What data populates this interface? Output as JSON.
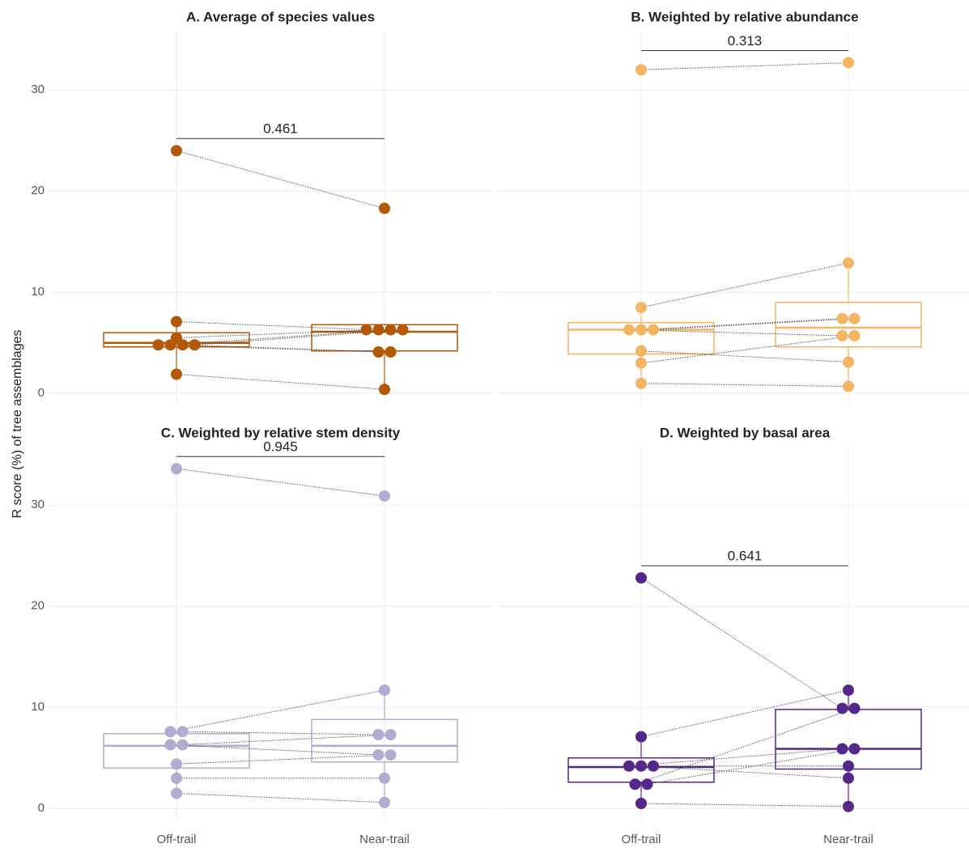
{
  "ylabel": "R score (%) of tree assemblages",
  "categories": [
    "Off-trail",
    "Near-trail"
  ],
  "ylim": [
    -1.1,
    35.7
  ],
  "yticks": [
    0,
    10,
    20,
    30
  ],
  "grid": true,
  "chart_data": [
    {
      "type": "paired-box",
      "title": "A. Average of species values",
      "color": "#b35806",
      "annotation": "0.461",
      "groups": [
        {
          "values": [
            24,
            7.1,
            5.5,
            4.8,
            4.8,
            4.8,
            4.8,
            1.9
          ],
          "q1": 4.6,
          "median": 5.0,
          "q3": 6.0,
          "whisker_low": 1.9,
          "whisker_high": 7.1
        },
        {
          "values": [
            18.3,
            6.3,
            6.3,
            4.1,
            6.3,
            4.1,
            6.3,
            0.4
          ],
          "q1": 4.2,
          "median": 6.1,
          "q3": 6.8,
          "whisker_low": 0.4,
          "whisker_high": 6.8
        }
      ]
    },
    {
      "type": "paired-box",
      "title": "B. Weighted by relative abundance",
      "color": "#f5b461",
      "annotation": "0.313",
      "groups": [
        {
          "values": [
            32,
            8.5,
            6.3,
            6.3,
            6.3,
            4.2,
            3.0,
            1.0
          ],
          "q1": 3.9,
          "median": 6.3,
          "q3": 7.0,
          "whisker_low": 1.0,
          "whisker_high": 8.5
        },
        {
          "values": [
            32.7,
            12.9,
            5.7,
            7.4,
            7.4,
            3.1,
            5.7,
            0.7
          ],
          "q1": 4.6,
          "median": 6.5,
          "q3": 9.0,
          "whisker_low": 0.7,
          "whisker_high": 12.9
        }
      ]
    },
    {
      "type": "paired-box",
      "title": "C. Weighted by relative stem density",
      "color": "#b2abd2",
      "annotation": "0.945",
      "groups": [
        {
          "values": [
            33.6,
            7.6,
            7.6,
            6.3,
            6.3,
            4.4,
            3.0,
            1.5
          ],
          "q1": 4.0,
          "median": 6.2,
          "q3": 7.4,
          "whisker_low": 1.5,
          "whisker_high": 7.6
        },
        {
          "values": [
            30.9,
            11.7,
            7.3,
            5.3,
            7.3,
            5.3,
            3.0,
            0.6
          ],
          "q1": 4.6,
          "median": 6.2,
          "q3": 8.8,
          "whisker_low": 0.6,
          "whisker_high": 11.7
        }
      ]
    },
    {
      "type": "paired-box",
      "title": "D. Weighted by basal area",
      "color": "#542788",
      "annotation": "0.641",
      "groups": [
        {
          "values": [
            22.8,
            7.1,
            4.2,
            4.2,
            4.2,
            2.4,
            2.4,
            0.5
          ],
          "q1": 2.6,
          "median": 4.1,
          "q3": 5.0,
          "whisker_low": 0.5,
          "whisker_high": 7.1
        },
        {
          "values": [
            9.9,
            11.7,
            5.9,
            3.0,
            4.2,
            9.9,
            5.9,
            0.2
          ],
          "q1": 3.9,
          "median": 5.9,
          "q3": 9.8,
          "whisker_low": 0.2,
          "whisker_high": 11.7
        }
      ]
    }
  ]
}
